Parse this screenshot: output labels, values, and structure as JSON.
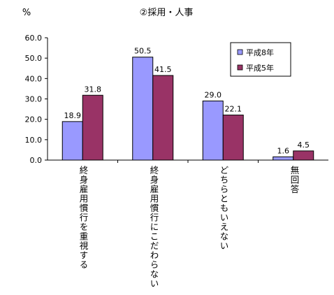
{
  "chart_data": {
    "type": "bar",
    "title": "②採用・人事",
    "ylabel": "%",
    "ylim": [
      0,
      60
    ],
    "yticks": [
      "0.0",
      "10.0",
      "20.0",
      "30.0",
      "40.0",
      "50.0",
      "60.0"
    ],
    "categories": [
      "終身雇用慣行を重視する",
      "終身雇用慣行にこだわらない",
      "どちらともいえない",
      "無回答"
    ],
    "series": [
      {
        "name": "平成8年",
        "values": [
          18.9,
          50.5,
          29.0,
          1.6
        ],
        "labels": [
          "18.9",
          "50.5",
          "29.0",
          "1.6"
        ],
        "color": "#9999FF"
      },
      {
        "name": "平成5年",
        "values": [
          31.8,
          41.5,
          22.1,
          4.5
        ],
        "labels": [
          "31.8",
          "41.5",
          "22.1",
          "4.5"
        ],
        "color": "#993366"
      }
    ],
    "legend": "top-right",
    "grid": false
  }
}
